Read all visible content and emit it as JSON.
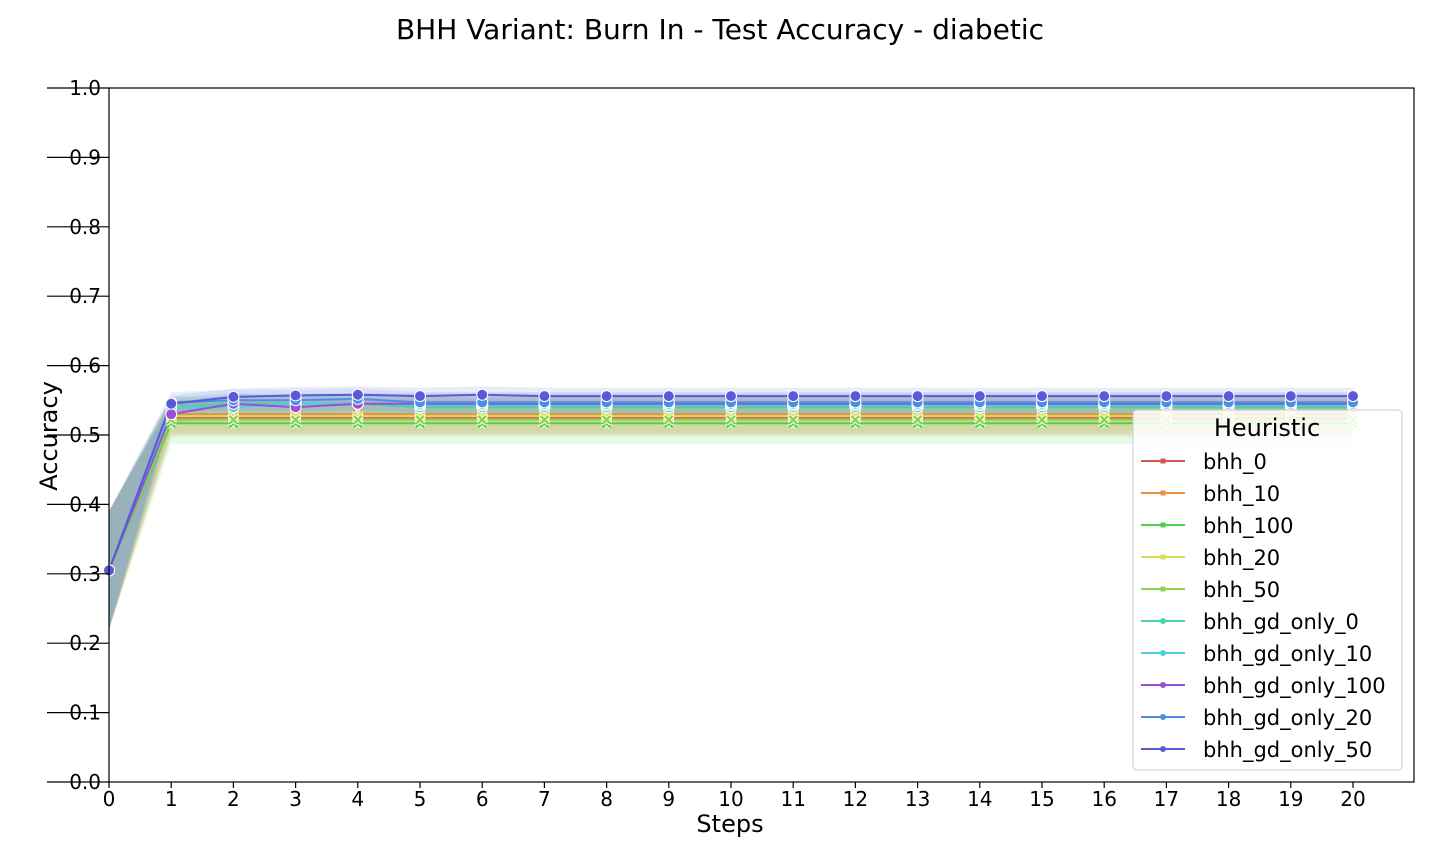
{
  "chart_data": {
    "type": "line",
    "title": "BHH Variant: Burn In - Test Accuracy - diabetic",
    "xlabel": "Steps",
    "ylabel": "Accuracy",
    "xlim": [
      0,
      21
    ],
    "ylim": [
      0.0,
      1.0
    ],
    "xticks": [
      0,
      1,
      2,
      3,
      4,
      5,
      6,
      7,
      8,
      9,
      10,
      11,
      12,
      13,
      14,
      15,
      16,
      17,
      18,
      19,
      20
    ],
    "yticks": [
      0.0,
      0.1,
      0.2,
      0.3,
      0.4,
      0.5,
      0.6,
      0.7,
      0.8,
      0.9,
      1.0
    ],
    "grid": false,
    "legend": {
      "title": "Heuristic",
      "placement": "lower-right"
    },
    "x": [
      0,
      1,
      2,
      3,
      4,
      5,
      6,
      7,
      8,
      9,
      10,
      11,
      12,
      13,
      14,
      15,
      16,
      17,
      18,
      19,
      20
    ],
    "series": [
      {
        "name": "bhh_0",
        "color": "#d9534f",
        "marker": "x",
        "band": 0.025,
        "values": [
          0.305,
          0.525,
          0.525,
          0.525,
          0.525,
          0.525,
          0.525,
          0.525,
          0.525,
          0.525,
          0.525,
          0.525,
          0.525,
          0.525,
          0.525,
          0.525,
          0.525,
          0.525,
          0.525,
          0.525,
          0.525
        ]
      },
      {
        "name": "bhh_10",
        "color": "#e8923f",
        "marker": "x",
        "band": 0.025,
        "values": [
          0.305,
          0.53,
          0.53,
          0.53,
          0.53,
          0.53,
          0.53,
          0.53,
          0.53,
          0.53,
          0.53,
          0.53,
          0.53,
          0.53,
          0.53,
          0.53,
          0.53,
          0.53,
          0.53,
          0.53,
          0.53
        ]
      },
      {
        "name": "bhh_100",
        "color": "#4fd14a",
        "marker": "x",
        "band": 0.03,
        "values": [
          0.305,
          0.517,
          0.517,
          0.517,
          0.517,
          0.517,
          0.517,
          0.517,
          0.517,
          0.517,
          0.517,
          0.517,
          0.517,
          0.517,
          0.517,
          0.517,
          0.517,
          0.517,
          0.517,
          0.517,
          0.517
        ]
      },
      {
        "name": "bhh_20",
        "color": "#d4dc58",
        "marker": "x",
        "band": 0.025,
        "values": [
          0.305,
          0.527,
          0.527,
          0.527,
          0.527,
          0.527,
          0.527,
          0.527,
          0.527,
          0.527,
          0.527,
          0.527,
          0.527,
          0.527,
          0.527,
          0.527,
          0.527,
          0.527,
          0.527,
          0.527,
          0.527
        ]
      },
      {
        "name": "bhh_50",
        "color": "#8fd44a",
        "marker": "x",
        "band": 0.025,
        "values": [
          0.305,
          0.522,
          0.522,
          0.522,
          0.522,
          0.522,
          0.522,
          0.522,
          0.522,
          0.522,
          0.522,
          0.522,
          0.522,
          0.522,
          0.522,
          0.522,
          0.522,
          0.522,
          0.522,
          0.522,
          0.522
        ]
      },
      {
        "name": "bhh_gd_only_0",
        "color": "#45d69a",
        "marker": "o",
        "band": 0.015,
        "values": [
          0.305,
          0.54,
          0.545,
          0.545,
          0.545,
          0.54,
          0.54,
          0.54,
          0.54,
          0.54,
          0.54,
          0.54,
          0.54,
          0.54,
          0.54,
          0.54,
          0.54,
          0.54,
          0.54,
          0.54,
          0.54
        ]
      },
      {
        "name": "bhh_gd_only_10",
        "color": "#4ccde0",
        "marker": "o",
        "band": 0.015,
        "values": [
          0.305,
          0.54,
          0.54,
          0.545,
          0.545,
          0.543,
          0.543,
          0.543,
          0.543,
          0.543,
          0.543,
          0.543,
          0.543,
          0.543,
          0.543,
          0.543,
          0.543,
          0.543,
          0.543,
          0.543,
          0.543
        ]
      },
      {
        "name": "bhh_gd_only_100",
        "color": "#9b4fd9",
        "marker": "o",
        "band": 0.015,
        "values": [
          0.305,
          0.53,
          0.545,
          0.54,
          0.545,
          0.545,
          0.545,
          0.545,
          0.545,
          0.545,
          0.545,
          0.545,
          0.545,
          0.545,
          0.545,
          0.545,
          0.545,
          0.545,
          0.545,
          0.545,
          0.545
        ]
      },
      {
        "name": "bhh_gd_only_20",
        "color": "#4a8fe0",
        "marker": "o",
        "band": 0.015,
        "values": [
          0.305,
          0.547,
          0.55,
          0.55,
          0.552,
          0.547,
          0.547,
          0.547,
          0.547,
          0.547,
          0.547,
          0.547,
          0.547,
          0.547,
          0.547,
          0.547,
          0.547,
          0.547,
          0.547,
          0.547,
          0.547
        ]
      },
      {
        "name": "bhh_gd_only_50",
        "color": "#5a5ad8",
        "marker": "o",
        "band": 0.012,
        "values": [
          0.305,
          0.545,
          0.555,
          0.557,
          0.558,
          0.556,
          0.558,
          0.556,
          0.556,
          0.556,
          0.556,
          0.556,
          0.556,
          0.556,
          0.556,
          0.556,
          0.556,
          0.556,
          0.556,
          0.556,
          0.556
        ]
      }
    ]
  }
}
